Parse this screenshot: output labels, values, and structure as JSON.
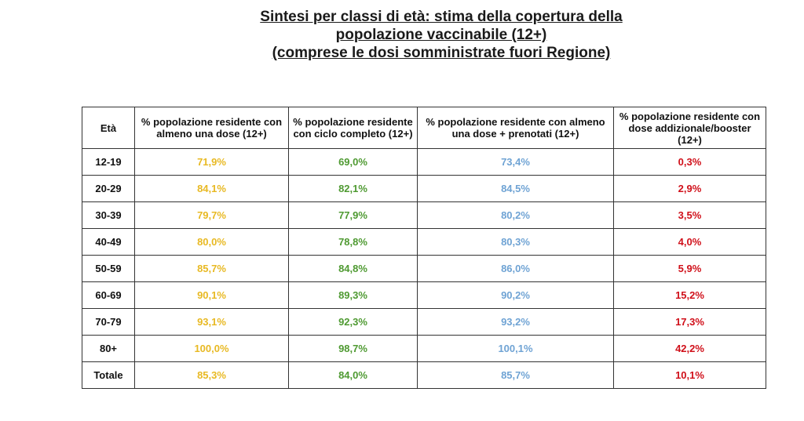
{
  "title": {
    "line1": "Sintesi per classi di età: stima della copertura della",
    "line2": "popolazione vaccinabile (12+)",
    "line3": "(comprese le dosi somministrate fuori Regione)"
  },
  "colors": {
    "first_dose": "#e8b923",
    "full_cycle": "#4f9a32",
    "dose_plus_booked": "#6fa3d4",
    "booster": "#d0101a"
  },
  "table": {
    "headers": {
      "age": "Età",
      "first_dose": "% popolazione residente con almeno una dose (12+)",
      "full_cycle": "% popolazione residente con ciclo completo (12+)",
      "dose_plus_booked": "% popolazione residente con almeno una dose + prenotati (12+)",
      "booster": "% popolazione residente con dose addizionale/booster (12+)"
    },
    "rows": [
      {
        "age": "12-19",
        "first_dose": "71,9%",
        "full_cycle": "69,0%",
        "dose_plus_booked": "73,4%",
        "booster": "0,3%"
      },
      {
        "age": "20-29",
        "first_dose": "84,1%",
        "full_cycle": "82,1%",
        "dose_plus_booked": "84,5%",
        "booster": "2,9%"
      },
      {
        "age": "30-39",
        "first_dose": "79,7%",
        "full_cycle": "77,9%",
        "dose_plus_booked": "80,2%",
        "booster": "3,5%"
      },
      {
        "age": "40-49",
        "first_dose": "80,0%",
        "full_cycle": "78,8%",
        "dose_plus_booked": "80,3%",
        "booster": "4,0%"
      },
      {
        "age": "50-59",
        "first_dose": "85,7%",
        "full_cycle": "84,8%",
        "dose_plus_booked": "86,0%",
        "booster": "5,9%"
      },
      {
        "age": "60-69",
        "first_dose": "90,1%",
        "full_cycle": "89,3%",
        "dose_plus_booked": "90,2%",
        "booster": "15,2%"
      },
      {
        "age": "70-79",
        "first_dose": "93,1%",
        "full_cycle": "92,3%",
        "dose_plus_booked": "93,2%",
        "booster": "17,3%"
      },
      {
        "age": "80+",
        "first_dose": "100,0%",
        "full_cycle": "98,7%",
        "dose_plus_booked": "100,1%",
        "booster": "42,2%"
      },
      {
        "age": "Totale",
        "first_dose": "85,3%",
        "full_cycle": "84,0%",
        "dose_plus_booked": "85,7%",
        "booster": "10,1%"
      }
    ]
  }
}
